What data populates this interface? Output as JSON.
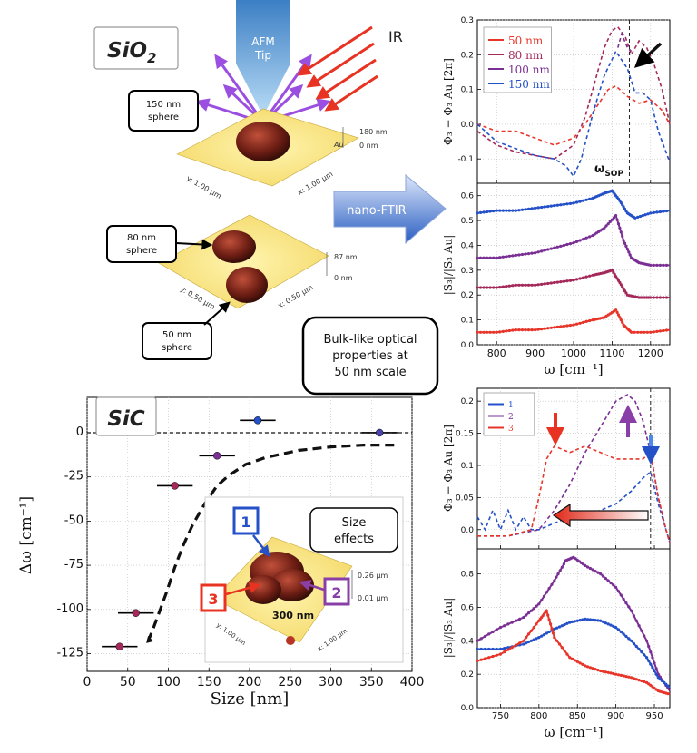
{
  "labels": {
    "sio2": "SiO",
    "sio2_sub": "2",
    "sic": "SiC",
    "afm_tip": [
      "AFM",
      "Tip"
    ],
    "ir": "IR",
    "sphere150": [
      "150 nm",
      "sphere"
    ],
    "sphere80": [
      "80 nm",
      "sphere"
    ],
    "sphere50": [
      "50 nm",
      "sphere"
    ],
    "au": "Au",
    "z180": "180 nm",
    "z0a": "0 nm",
    "z87": "87 nm",
    "z0b": "0 nm",
    "y1": "y: 1.00 µm",
    "x1": "x: 1.00 µm",
    "y05": "y: 0.50 µm",
    "x05": "x: 0.50 µm",
    "nano_ftir": "nano-FTIR",
    "bulk": [
      "Bulk-like optical",
      "properties at",
      "50 nm scale"
    ],
    "size_effects": [
      "Size",
      "effects"
    ],
    "nm300": "300 nm",
    "z026": "0.26 µm",
    "z001": "0.01 µm",
    "yinset": "y: 1.00 µm",
    "xinset": "x: 1.00 µm",
    "box1": "1",
    "box2": "2",
    "box3": "3",
    "omega_sop": "ω",
    "omega_sop_sub": "SOP"
  },
  "colors": {
    "c50": "#e8352a",
    "c80": "#a4295a",
    "c100": "#7a2f94",
    "c150": "#2450c8",
    "s1": "#2450c8",
    "s2": "#7a2f94",
    "s3": "#e8352a"
  },
  "chart_data": [
    {
      "id": "tr_phase",
      "type": "line",
      "ylabel": "Φ₃ − Φ₃ Au [2π]",
      "xlim": [
        750,
        1250
      ],
      "ylim": [
        -0.17,
        0.3
      ],
      "yticks": [
        -0.1,
        0.0,
        0.1,
        0.2,
        0.3
      ],
      "xticks": [
        800,
        900,
        1000,
        1100,
        1200
      ],
      "vline": 1145,
      "legend": "top-left",
      "series": [
        {
          "name": "50 nm",
          "color": "#e8352a",
          "x": [
            750,
            800,
            850,
            900,
            950,
            1000,
            1030,
            1060,
            1090,
            1110,
            1140,
            1170,
            1200,
            1230,
            1250
          ],
          "y": [
            0.0,
            -0.02,
            -0.02,
            -0.04,
            -0.06,
            -0.04,
            0.0,
            0.05,
            0.1,
            0.11,
            0.08,
            0.06,
            0.07,
            0.04,
            0.0
          ]
        },
        {
          "name": "80 nm",
          "color": "#a4295a",
          "x": [
            750,
            800,
            850,
            900,
            950,
            1000,
            1030,
            1060,
            1080,
            1100,
            1115,
            1135,
            1150,
            1170,
            1190,
            1210,
            1230,
            1250
          ],
          "y": [
            -0.02,
            -0.06,
            -0.08,
            -0.09,
            -0.1,
            -0.06,
            0.02,
            0.14,
            0.22,
            0.27,
            0.28,
            0.25,
            0.2,
            0.24,
            0.22,
            0.17,
            0.1,
            0.0
          ]
        },
        {
          "name": "100 nm",
          "color": "#7a2f94",
          "x": [
            1115,
            1125,
            1140,
            1150
          ],
          "y": [
            0.22,
            0.26,
            0.22,
            0.21
          ]
        },
        {
          "name": "150 nm",
          "color": "#2450c8",
          "x": [
            750,
            800,
            850,
            900,
            950,
            980,
            1000,
            1020,
            1050,
            1080,
            1110,
            1140,
            1160,
            1180,
            1200,
            1220,
            1240,
            1250
          ],
          "y": [
            0.0,
            -0.05,
            -0.07,
            -0.09,
            -0.1,
            -0.12,
            -0.15,
            -0.1,
            0.03,
            0.14,
            0.21,
            0.16,
            0.09,
            0.09,
            0.07,
            -0.02,
            -0.08,
            -0.11
          ]
        }
      ]
    },
    {
      "id": "tr_amp",
      "type": "scatter",
      "ylabel": "|S₃|/|S₃ Au|",
      "xlabel": "ω [cm⁻¹]",
      "xlim": [
        750,
        1250
      ],
      "ylim": [
        0,
        0.65
      ],
      "yticks": [
        0.0,
        0.1,
        0.2,
        0.3,
        0.4,
        0.5,
        0.6
      ],
      "xticks": [
        800,
        900,
        1000,
        1100,
        1200
      ],
      "series": [
        {
          "name": "150 nm",
          "color": "#2450c8",
          "x": [
            750,
            800,
            850,
            900,
            950,
            1000,
            1050,
            1080,
            1100,
            1120,
            1140,
            1160,
            1200,
            1250
          ],
          "y": [
            0.53,
            0.54,
            0.54,
            0.55,
            0.56,
            0.57,
            0.59,
            0.61,
            0.62,
            0.58,
            0.53,
            0.51,
            0.53,
            0.54
          ]
        },
        {
          "name": "100 nm",
          "color": "#7a2f94",
          "x": [
            750,
            800,
            850,
            900,
            950,
            1000,
            1050,
            1080,
            1110,
            1130,
            1150,
            1170,
            1200,
            1250
          ],
          "y": [
            0.35,
            0.35,
            0.36,
            0.37,
            0.39,
            0.41,
            0.44,
            0.47,
            0.52,
            0.42,
            0.35,
            0.33,
            0.32,
            0.32
          ]
        },
        {
          "name": "80 nm",
          "color": "#a4295a",
          "x": [
            750,
            800,
            850,
            900,
            950,
            1000,
            1050,
            1080,
            1100,
            1120,
            1140,
            1170,
            1200,
            1250
          ],
          "y": [
            0.23,
            0.23,
            0.24,
            0.24,
            0.25,
            0.26,
            0.28,
            0.29,
            0.3,
            0.25,
            0.2,
            0.19,
            0.19,
            0.19
          ]
        },
        {
          "name": "50 nm",
          "color": "#e8352a",
          "x": [
            750,
            800,
            850,
            900,
            950,
            1000,
            1050,
            1080,
            1110,
            1130,
            1150,
            1200,
            1250
          ],
          "y": [
            0.05,
            0.05,
            0.06,
            0.06,
            0.07,
            0.08,
            0.1,
            0.11,
            0.14,
            0.08,
            0.05,
            0.05,
            0.06
          ]
        }
      ]
    },
    {
      "id": "sic_shift",
      "type": "scatter",
      "ylabel": "Δω [cm⁻¹]",
      "xlabel": "Size [nm]",
      "xlim": [
        0,
        400
      ],
      "ylim": [
        -135,
        20
      ],
      "yticks": [
        0,
        -25,
        -50,
        -75,
        -100,
        -125
      ],
      "xticks": [
        0,
        50,
        100,
        150,
        200,
        250,
        300,
        350,
        400
      ],
      "points": [
        {
          "x": 40,
          "y": -121,
          "xerr": 22,
          "color": "#a4295a"
        },
        {
          "x": 60,
          "y": -102,
          "xerr": 22,
          "color": "#a4295a"
        },
        {
          "x": 108,
          "y": -30,
          "xerr": 22,
          "color": "#a4295a"
        },
        {
          "x": 160,
          "y": -13,
          "xerr": 22,
          "color": "#7a2f94"
        },
        {
          "x": 210,
          "y": 7,
          "xerr": 22,
          "color": "#2450c8"
        },
        {
          "x": 360,
          "y": 0,
          "xerr": 22,
          "color": "#4a44a8"
        }
      ],
      "fit": {
        "x": [
          378,
          340,
          300,
          260,
          220,
          195,
          175,
          160,
          145,
          130,
          118,
          108,
          98,
          90,
          82,
          75
        ],
        "y": [
          -7,
          -7,
          -8,
          -10,
          -14,
          -18,
          -24,
          -30,
          -40,
          -52,
          -64,
          -76,
          -90,
          -100,
          -110,
          -118
        ]
      }
    },
    {
      "id": "br_phase",
      "type": "line",
      "ylabel": "Φ₃ − Φ₃ Au [2π]",
      "xlim": [
        720,
        970
      ],
      "ylim": [
        -0.03,
        0.22
      ],
      "yticks": [
        0.0,
        0.05,
        0.1,
        0.15,
        0.2
      ],
      "xticks": [
        750,
        800,
        850,
        900,
        950
      ],
      "vline": 945,
      "legend": "top-left",
      "series": [
        {
          "name": "1",
          "color": "#2450c8",
          "x": [
            720,
            730,
            740,
            750,
            760,
            770,
            780,
            790,
            800,
            820,
            840,
            860,
            880,
            900,
            920,
            935,
            945,
            955,
            965,
            970
          ],
          "y": [
            0.02,
            0.0,
            0.03,
            0.0,
            0.03,
            0.0,
            0.02,
            0.0,
            0.0,
            0.01,
            0.02,
            0.02,
            0.03,
            0.04,
            0.06,
            0.08,
            0.09,
            0.04,
            0.0,
            -0.02
          ]
        },
        {
          "name": "2",
          "color": "#7a2f94",
          "x": [
            720,
            760,
            800,
            820,
            840,
            860,
            880,
            900,
            915,
            925,
            935,
            945,
            955,
            965,
            970
          ],
          "y": [
            -0.01,
            -0.01,
            0.0,
            0.03,
            0.07,
            0.12,
            0.16,
            0.2,
            0.21,
            0.2,
            0.17,
            0.12,
            0.05,
            0.0,
            -0.02
          ]
        },
        {
          "name": "3",
          "color": "#e8352a",
          "x": [
            720,
            760,
            790,
            800,
            810,
            820,
            840,
            860,
            880,
            900,
            920,
            935,
            945,
            955,
            965,
            970
          ],
          "y": [
            -0.01,
            -0.01,
            0.0,
            0.05,
            0.11,
            0.13,
            0.12,
            0.13,
            0.12,
            0.11,
            0.11,
            0.11,
            0.12,
            0.05,
            0.0,
            -0.02
          ]
        }
      ]
    },
    {
      "id": "br_amp",
      "type": "scatter",
      "ylabel": "|S₃|/|S₃ Au|",
      "xlabel": "ω [cm⁻¹]",
      "xlim": [
        720,
        970
      ],
      "ylim": [
        0,
        0.95
      ],
      "yticks": [
        0.0,
        0.2,
        0.4,
        0.6,
        0.8
      ],
      "xticks": [
        750,
        800,
        850,
        900,
        950
      ],
      "series": [
        {
          "name": "2",
          "color": "#7a2f94",
          "x": [
            720,
            750,
            780,
            800,
            820,
            835,
            845,
            860,
            880,
            900,
            920,
            940,
            955,
            970
          ],
          "y": [
            0.4,
            0.48,
            0.54,
            0.62,
            0.76,
            0.88,
            0.9,
            0.85,
            0.8,
            0.72,
            0.58,
            0.4,
            0.2,
            0.1
          ]
        },
        {
          "name": "1",
          "color": "#2450c8",
          "x": [
            720,
            750,
            780,
            800,
            820,
            840,
            860,
            880,
            900,
            920,
            940,
            955,
            970
          ],
          "y": [
            0.35,
            0.35,
            0.38,
            0.42,
            0.47,
            0.51,
            0.53,
            0.52,
            0.48,
            0.4,
            0.3,
            0.18,
            0.12
          ]
        },
        {
          "name": "3",
          "color": "#e8352a",
          "x": [
            720,
            750,
            780,
            800,
            810,
            820,
            840,
            860,
            880,
            900,
            920,
            940,
            955,
            970
          ],
          "y": [
            0.28,
            0.32,
            0.4,
            0.52,
            0.58,
            0.42,
            0.3,
            0.25,
            0.22,
            0.2,
            0.18,
            0.15,
            0.1,
            0.08
          ]
        }
      ]
    }
  ]
}
